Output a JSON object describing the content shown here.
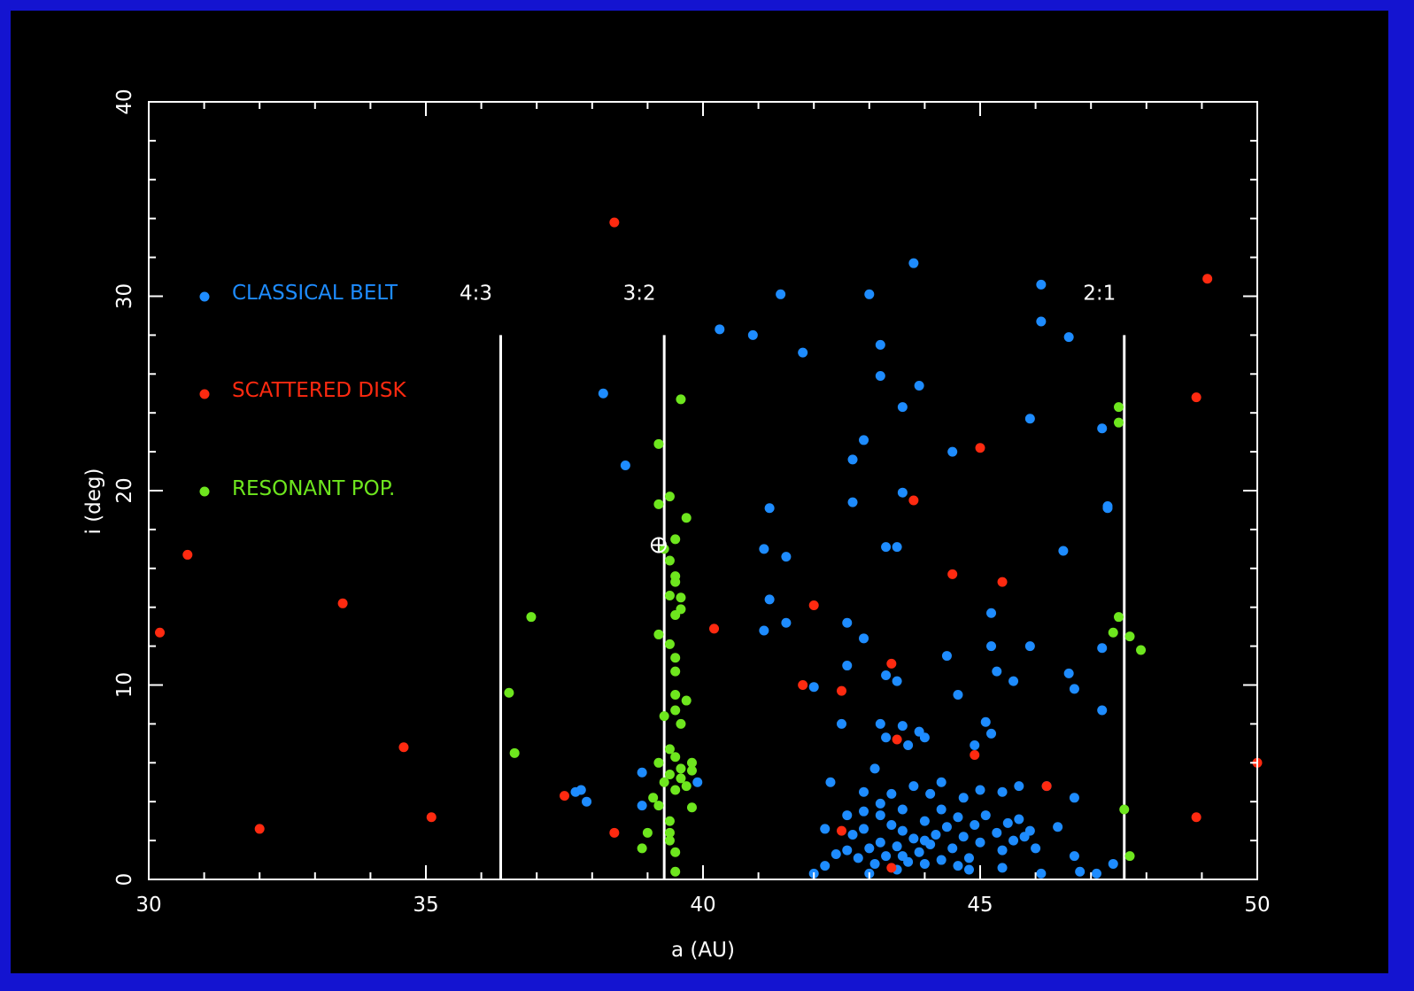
{
  "chart_data": {
    "type": "scatter",
    "title": "",
    "xlabel": "a (AU)",
    "ylabel": "i (deg)",
    "xlim": [
      30,
      50
    ],
    "ylim": [
      0,
      40
    ],
    "xticks": [
      30,
      35,
      40,
      45,
      50
    ],
    "yticks": [
      0,
      10,
      20,
      30,
      40
    ],
    "grid": false,
    "legend_placement": "top-left",
    "colors": {
      "background": "#000000",
      "frame": "#1414d0",
      "axes": "#ffffff",
      "classical": "#1e8cff",
      "scattered": "#ff2a10",
      "resonant": "#6ee61e"
    },
    "resonances": [
      {
        "label": "4:3",
        "a": 36.35
      },
      {
        "label": "3:2",
        "a": 39.3
      },
      {
        "label": "2:1",
        "a": 47.6
      }
    ],
    "resonance_line_top": 28,
    "marked_object": {
      "name": "pluto-symbol",
      "a": 39.2,
      "i": 17.2
    },
    "series": [
      {
        "name": "CLASSICAL BELT",
        "color": "#1e8cff",
        "points": [
          [
            31.0,
            30.0
          ],
          [
            38.2,
            25.0
          ],
          [
            38.6,
            21.3
          ],
          [
            37.7,
            4.5
          ],
          [
            37.8,
            4.6
          ],
          [
            37.9,
            4.0
          ],
          [
            38.9,
            5.5
          ],
          [
            38.9,
            3.8
          ],
          [
            39.9,
            5.0
          ],
          [
            40.3,
            28.3
          ],
          [
            40.9,
            28.0
          ],
          [
            41.4,
            30.1
          ],
          [
            41.8,
            27.1
          ],
          [
            43.8,
            31.7
          ],
          [
            43.0,
            30.1
          ],
          [
            43.2,
            27.5
          ],
          [
            43.2,
            25.9
          ],
          [
            43.9,
            25.4
          ],
          [
            43.6,
            24.3
          ],
          [
            42.9,
            22.6
          ],
          [
            42.7,
            21.6
          ],
          [
            44.5,
            22.0
          ],
          [
            41.2,
            19.1
          ],
          [
            42.7,
            19.4
          ],
          [
            43.6,
            19.9
          ],
          [
            41.1,
            17.0
          ],
          [
            41.5,
            16.6
          ],
          [
            43.3,
            17.1
          ],
          [
            43.5,
            17.1
          ],
          [
            41.2,
            14.4
          ],
          [
            41.5,
            13.2
          ],
          [
            41.1,
            12.8
          ],
          [
            42.6,
            13.2
          ],
          [
            42.9,
            12.4
          ],
          [
            42.6,
            11.0
          ],
          [
            42.0,
            9.9
          ],
          [
            43.3,
            10.5
          ],
          [
            43.5,
            10.2
          ],
          [
            44.4,
            11.5
          ],
          [
            44.6,
            9.5
          ],
          [
            45.2,
            13.7
          ],
          [
            45.2,
            12.0
          ],
          [
            45.3,
            10.7
          ],
          [
            45.6,
            10.2
          ],
          [
            45.9,
            12.0
          ],
          [
            45.9,
            23.7
          ],
          [
            46.1,
            30.6
          ],
          [
            46.1,
            28.7
          ],
          [
            46.6,
            27.9
          ],
          [
            46.5,
            16.9
          ],
          [
            46.6,
            10.6
          ],
          [
            46.7,
            9.8
          ],
          [
            47.2,
            23.2
          ],
          [
            47.3,
            19.1
          ],
          [
            47.3,
            19.2
          ],
          [
            47.2,
            11.9
          ],
          [
            47.2,
            8.7
          ],
          [
            42.5,
            8.0
          ],
          [
            43.2,
            8.0
          ],
          [
            43.3,
            7.3
          ],
          [
            43.6,
            7.9
          ],
          [
            43.9,
            7.6
          ],
          [
            44.0,
            7.3
          ],
          [
            43.7,
            6.9
          ],
          [
            44.9,
            6.9
          ],
          [
            45.1,
            8.1
          ],
          [
            45.2,
            7.5
          ],
          [
            42.3,
            5.0
          ],
          [
            42.6,
            3.3
          ],
          [
            42.9,
            4.5
          ],
          [
            43.1,
            5.7
          ],
          [
            43.2,
            3.3
          ],
          [
            43.4,
            4.4
          ],
          [
            43.6,
            3.6
          ],
          [
            43.8,
            4.8
          ],
          [
            44.1,
            4.4
          ],
          [
            44.3,
            5.0
          ],
          [
            44.7,
            4.2
          ],
          [
            45.0,
            4.6
          ],
          [
            45.4,
            4.5
          ],
          [
            45.7,
            4.8
          ],
          [
            46.2,
            4.8
          ],
          [
            46.7,
            4.2
          ],
          [
            42.2,
            2.6
          ],
          [
            42.4,
            1.3
          ],
          [
            42.6,
            1.5
          ],
          [
            42.7,
            2.3
          ],
          [
            42.8,
            1.1
          ],
          [
            42.9,
            2.6
          ],
          [
            43.0,
            1.6
          ],
          [
            43.1,
            0.8
          ],
          [
            43.2,
            1.9
          ],
          [
            43.3,
            1.2
          ],
          [
            43.4,
            2.8
          ],
          [
            43.5,
            1.7
          ],
          [
            43.6,
            2.5
          ],
          [
            43.7,
            0.9
          ],
          [
            43.8,
            2.1
          ],
          [
            43.9,
            1.4
          ],
          [
            44.0,
            3.0
          ],
          [
            44.1,
            1.8
          ],
          [
            44.2,
            2.3
          ],
          [
            44.3,
            1.0
          ],
          [
            44.4,
            2.7
          ],
          [
            44.5,
            1.6
          ],
          [
            44.6,
            3.2
          ],
          [
            44.7,
            2.2
          ],
          [
            44.8,
            1.1
          ],
          [
            44.9,
            2.8
          ],
          [
            45.0,
            1.9
          ],
          [
            45.1,
            3.3
          ],
          [
            45.3,
            2.4
          ],
          [
            45.4,
            1.5
          ],
          [
            45.5,
            2.9
          ],
          [
            45.6,
            2.0
          ],
          [
            45.7,
            3.1
          ],
          [
            45.8,
            2.2
          ],
          [
            45.9,
            2.5
          ],
          [
            46.0,
            1.6
          ],
          [
            46.1,
            0.3
          ],
          [
            46.4,
            2.7
          ],
          [
            46.7,
            1.2
          ],
          [
            46.8,
            0.4
          ],
          [
            47.1,
            0.3
          ],
          [
            47.4,
            0.8
          ],
          [
            42.0,
            0.3
          ],
          [
            42.2,
            0.7
          ],
          [
            43.0,
            0.3
          ],
          [
            43.5,
            0.5
          ],
          [
            44.0,
            0.8
          ],
          [
            44.8,
            0.5
          ],
          [
            45.4,
            0.6
          ],
          [
            43.2,
            3.9
          ],
          [
            44.0,
            2.0
          ],
          [
            43.6,
            1.2
          ],
          [
            44.3,
            3.6
          ],
          [
            42.9,
            3.5
          ],
          [
            44.6,
            0.7
          ]
        ]
      },
      {
        "name": "SCATTERED DISK",
        "color": "#ff2a10",
        "points": [
          [
            31.0,
            25.0
          ],
          [
            38.4,
            33.8
          ],
          [
            30.7,
            16.7
          ],
          [
            30.2,
            12.7
          ],
          [
            33.5,
            14.2
          ],
          [
            34.6,
            6.8
          ],
          [
            35.1,
            3.2
          ],
          [
            32.0,
            2.6
          ],
          [
            37.5,
            4.3
          ],
          [
            38.4,
            2.4
          ],
          [
            40.2,
            12.9
          ],
          [
            42.0,
            14.1
          ],
          [
            41.8,
            10.0
          ],
          [
            42.5,
            9.7
          ],
          [
            43.4,
            11.1
          ],
          [
            43.8,
            19.5
          ],
          [
            44.5,
            15.7
          ],
          [
            45.4,
            15.3
          ],
          [
            45.0,
            22.2
          ],
          [
            43.5,
            7.2
          ],
          [
            44.9,
            6.4
          ],
          [
            42.5,
            2.5
          ],
          [
            43.4,
            0.6
          ],
          [
            46.2,
            4.8
          ],
          [
            48.9,
            24.8
          ],
          [
            49.1,
            30.9
          ],
          [
            48.9,
            3.2
          ],
          [
            50.0,
            6.0
          ]
        ]
      },
      {
        "name": "RESONANT POP.",
        "color": "#6ee61e",
        "points": [
          [
            31.0,
            20.0
          ],
          [
            36.5,
            9.6
          ],
          [
            36.6,
            6.5
          ],
          [
            36.9,
            13.5
          ],
          [
            39.2,
            22.4
          ],
          [
            39.6,
            24.7
          ],
          [
            39.2,
            19.3
          ],
          [
            39.4,
            19.7
          ],
          [
            39.7,
            18.6
          ],
          [
            39.3,
            17.0
          ],
          [
            39.5,
            17.5
          ],
          [
            39.4,
            16.4
          ],
          [
            39.5,
            15.6
          ],
          [
            39.5,
            15.3
          ],
          [
            39.4,
            14.6
          ],
          [
            39.6,
            14.5
          ],
          [
            39.6,
            13.9
          ],
          [
            39.5,
            13.6
          ],
          [
            39.4,
            12.1
          ],
          [
            39.2,
            12.6
          ],
          [
            39.5,
            11.4
          ],
          [
            39.5,
            10.7
          ],
          [
            39.5,
            9.5
          ],
          [
            39.7,
            9.2
          ],
          [
            39.5,
            8.7
          ],
          [
            39.6,
            8.0
          ],
          [
            39.3,
            8.4
          ],
          [
            39.4,
            6.7
          ],
          [
            39.5,
            6.3
          ],
          [
            39.2,
            6.0
          ],
          [
            39.6,
            5.7
          ],
          [
            39.4,
            5.4
          ],
          [
            39.8,
            6.0
          ],
          [
            39.8,
            5.6
          ],
          [
            39.3,
            5.0
          ],
          [
            39.5,
            4.6
          ],
          [
            39.7,
            4.8
          ],
          [
            39.6,
            5.2
          ],
          [
            39.1,
            4.2
          ],
          [
            39.2,
            3.8
          ],
          [
            39.8,
            3.7
          ],
          [
            39.4,
            3.0
          ],
          [
            39.0,
            2.4
          ],
          [
            39.4,
            2.4
          ],
          [
            39.4,
            2.0
          ],
          [
            38.9,
            1.6
          ],
          [
            39.5,
            1.4
          ],
          [
            39.5,
            0.4
          ],
          [
            47.5,
            24.3
          ],
          [
            47.5,
            23.5
          ],
          [
            47.4,
            12.7
          ],
          [
            47.5,
            13.5
          ],
          [
            47.7,
            12.5
          ],
          [
            47.9,
            11.8
          ],
          [
            47.6,
            3.6
          ],
          [
            47.7,
            1.2
          ]
        ]
      }
    ]
  }
}
